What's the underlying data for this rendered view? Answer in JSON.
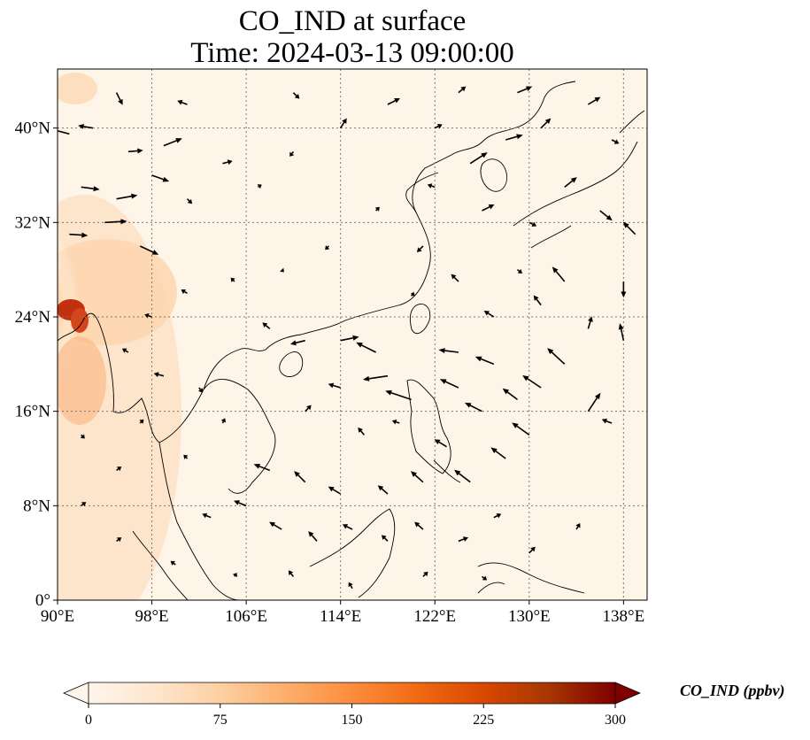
{
  "title": {
    "line1": "CO_IND at surface",
    "line2": "Time: 2024-03-13 09:00:00"
  },
  "map": {
    "lon_range": [
      90,
      140
    ],
    "lat_range": [
      0,
      45
    ],
    "x_ticks": [
      "90°E",
      "98°E",
      "106°E",
      "114°E",
      "122°E",
      "130°E",
      "138°E"
    ],
    "x_tick_values": [
      90,
      98,
      106,
      114,
      122,
      130,
      138
    ],
    "y_ticks": [
      "0°",
      "8°N",
      "16°N",
      "24°N",
      "32°N",
      "40°N"
    ],
    "y_tick_values": [
      0,
      8,
      16,
      24,
      32,
      40
    ],
    "gridlines": "dotted",
    "field_colormap": [
      "#fff5eb",
      "#fdd0a2",
      "#fd8d3c",
      "#d94801",
      "#7f0000"
    ],
    "high_values_region": "Myanmar / NE India border near 24°N 91°E"
  },
  "colorbar": {
    "label": "CO_IND (ppbv)",
    "min": 0,
    "max": 300,
    "tick_values": [
      0,
      75,
      150,
      225,
      300
    ],
    "tick_labels": [
      "0",
      "75",
      "150",
      "225",
      "300"
    ],
    "extend": "both",
    "colors": [
      "#fff5eb",
      "#fee6ce",
      "#fdd0a2",
      "#fdae6b",
      "#fd8d3c",
      "#f16913",
      "#d94801",
      "#a63603",
      "#7f0000"
    ]
  },
  "wind_vectors": [
    [
      91,
      39.5,
      -1.5,
      0.4
    ],
    [
      93,
      40,
      -1.2,
      0.2
    ],
    [
      96,
      38,
      1.2,
      0.1
    ],
    [
      99,
      38.5,
      1.5,
      0.6
    ],
    [
      92,
      35,
      1.5,
      -0.2
    ],
    [
      95,
      34,
      1.7,
      0.3
    ],
    [
      98,
      36,
      1.4,
      -0.5
    ],
    [
      91,
      31,
      1.5,
      -0.1
    ],
    [
      94,
      32,
      1.8,
      0.1
    ],
    [
      97,
      30,
      1.5,
      -0.7
    ],
    [
      101,
      34,
      0.4,
      -0.4
    ],
    [
      104,
      37,
      0.8,
      0.2
    ],
    [
      107,
      35,
      0.3,
      0.2
    ],
    [
      110,
      38,
      -0.3,
      -0.4
    ],
    [
      114,
      40,
      0.5,
      0.8
    ],
    [
      118,
      42,
      1.0,
      0.5
    ],
    [
      122,
      40,
      0.6,
      0.3
    ],
    [
      125,
      37,
      1.4,
      0.9
    ],
    [
      128,
      39,
      1.4,
      0.4
    ],
    [
      131,
      40,
      0.8,
      0.8
    ],
    [
      135,
      42,
      1.0,
      0.6
    ],
    [
      137,
      39,
      0.6,
      -0.3
    ],
    [
      133,
      35,
      1.0,
      0.8
    ],
    [
      136,
      33,
      1.0,
      -0.8
    ],
    [
      139,
      31,
      -1.0,
      1.0
    ],
    [
      130,
      32,
      0.6,
      -0.3
    ],
    [
      126,
      33,
      1.0,
      0.5
    ],
    [
      121,
      30,
      -0.5,
      -0.5
    ],
    [
      117,
      33,
      0.3,
      0.3
    ],
    [
      113,
      30,
      -0.3,
      -0.3
    ],
    [
      109,
      28,
      0.2,
      -0.2
    ],
    [
      105,
      27,
      -0.3,
      0.3
    ],
    [
      101,
      26,
      -0.5,
      0.3
    ],
    [
      98,
      24,
      -0.6,
      0.2
    ],
    [
      96,
      21,
      -0.5,
      0.3
    ],
    [
      99,
      19,
      -0.8,
      0.2
    ],
    [
      102,
      18,
      0.3,
      -0.4
    ],
    [
      104,
      15,
      0.2,
      0.4
    ],
    [
      108,
      23,
      -0.6,
      0.5
    ],
    [
      111,
      22,
      -1.2,
      -0.3
    ],
    [
      114,
      22,
      1.5,
      0.3
    ],
    [
      117,
      21,
      -1.6,
      0.8
    ],
    [
      118,
      19,
      -2.0,
      -0.3
    ],
    [
      120,
      17,
      -2.1,
      0.7
    ],
    [
      114,
      18,
      -1.0,
      0.3
    ],
    [
      111,
      16,
      0.5,
      0.5
    ],
    [
      116,
      14,
      -0.5,
      0.6
    ],
    [
      119,
      15,
      -0.6,
      0.2
    ],
    [
      124,
      21,
      -1.6,
      0.2
    ],
    [
      127,
      20,
      -1.5,
      0.6
    ],
    [
      124,
      18,
      -1.5,
      0.7
    ],
    [
      126,
      16,
      -1.4,
      0.7
    ],
    [
      129,
      17,
      -1.2,
      0.9
    ],
    [
      131,
      18,
      -1.5,
      1.0
    ],
    [
      133,
      20,
      -1.4,
      1.3
    ],
    [
      135,
      16,
      1.0,
      1.5
    ],
    [
      137,
      15,
      -0.8,
      0.3
    ],
    [
      130,
      14,
      -1.4,
      1.0
    ],
    [
      128,
      12,
      -1.2,
      0.9
    ],
    [
      125,
      10,
      -1.3,
      1.0
    ],
    [
      123,
      13,
      -1.0,
      0.6
    ],
    [
      121,
      10,
      -1.0,
      0.9
    ],
    [
      118,
      9,
      -0.8,
      0.7
    ],
    [
      114,
      9,
      -1.0,
      0.6
    ],
    [
      111,
      10,
      -0.9,
      0.9
    ],
    [
      108,
      11,
      -1.3,
      0.5
    ],
    [
      106,
      8,
      -1.0,
      0.4
    ],
    [
      103,
      7,
      -0.7,
      0.3
    ],
    [
      109,
      6,
      -1.0,
      0.6
    ],
    [
      112,
      5,
      -0.7,
      0.8
    ],
    [
      115,
      6,
      -0.8,
      0.4
    ],
    [
      118,
      5,
      -0.5,
      0.5
    ],
    [
      121,
      6,
      -0.7,
      0.6
    ],
    [
      124,
      5,
      0.8,
      0.3
    ],
    [
      127,
      7,
      0.6,
      0.3
    ],
    [
      130,
      4,
      0.5,
      0.5
    ],
    [
      134,
      6,
      0.3,
      0.5
    ],
    [
      126,
      2,
      0.4,
      -0.3
    ],
    [
      121,
      2,
      0.4,
      0.4
    ],
    [
      115,
      1,
      -0.3,
      0.5
    ],
    [
      110,
      2,
      -0.4,
      0.5
    ],
    [
      105,
      2,
      0.2,
      0.3
    ],
    [
      100,
      3,
      -0.4,
      0.3
    ],
    [
      95,
      5,
      0.4,
      0.3
    ],
    [
      92,
      8,
      0.4,
      0.3
    ],
    [
      95,
      11,
      0.4,
      0.3
    ],
    [
      92,
      14,
      0.3,
      -0.3
    ],
    [
      97,
      15,
      0.3,
      0.3
    ],
    [
      101,
      12,
      -0.3,
      0.3
    ],
    [
      133,
      27,
      -1.0,
      1.2
    ],
    [
      138,
      27,
      0.0,
      -1.3
    ],
    [
      131,
      25,
      -0.6,
      0.8
    ],
    [
      127,
      24,
      -0.8,
      0.5
    ],
    [
      124,
      27,
      -0.6,
      0.6
    ],
    [
      120,
      26,
      0.3,
      -0.2
    ],
    [
      129,
      28,
      0.4,
      -0.3
    ],
    [
      135,
      23,
      0.3,
      1.0
    ],
    [
      138,
      22,
      -0.3,
      1.4
    ],
    [
      122,
      35,
      -0.6,
      0.2
    ],
    [
      129,
      43,
      1.2,
      0.5
    ],
    [
      124,
      43,
      0.6,
      0.5
    ],
    [
      110,
      43,
      0.5,
      -0.5
    ],
    [
      101,
      42,
      -0.8,
      0.3
    ],
    [
      95,
      43,
      0.5,
      -1.0
    ]
  ]
}
